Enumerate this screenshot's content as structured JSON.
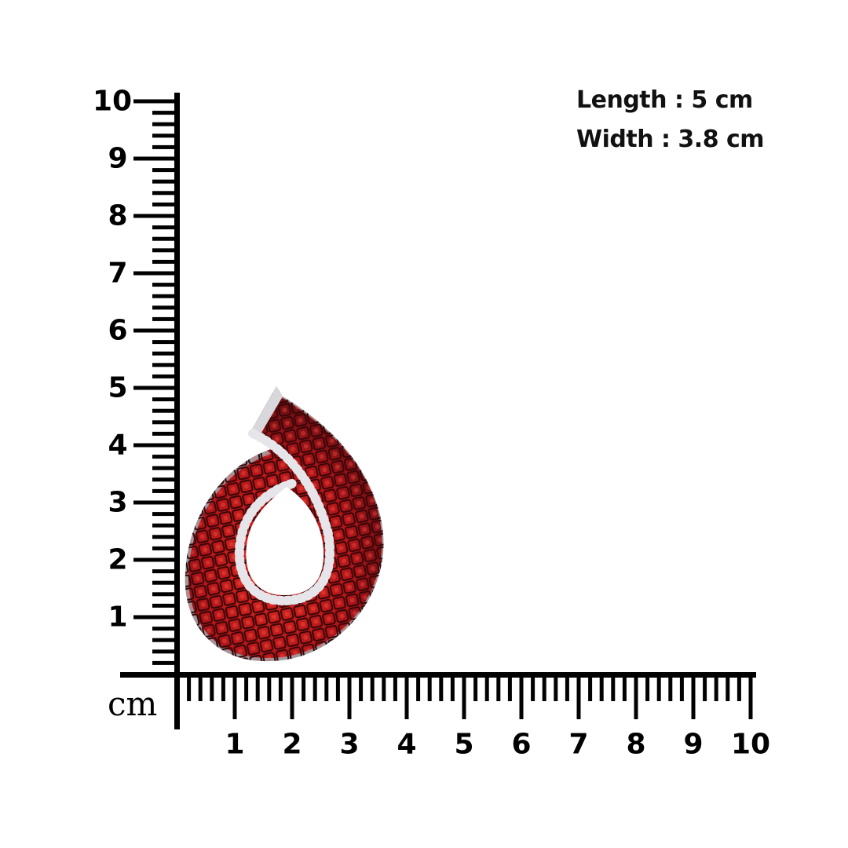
{
  "dimensions": {
    "length": "Length : 5 cm",
    "width": "Width : 3.8 cm"
  },
  "ruler": {
    "unit": "cm",
    "vertical_labels": [
      "1",
      "2",
      "3",
      "4",
      "5",
      "6",
      "7",
      "8",
      "9",
      "10"
    ],
    "horizontal_labels": [
      "1",
      "2",
      "3",
      "4",
      "5",
      "6",
      "7",
      "8",
      "9",
      "10"
    ],
    "ticks_per_cm": 5,
    "color": "#000000"
  },
  "product": {
    "type": "teardrop pendant",
    "stone_color": "#b01818",
    "accent_color": "#e0e0e0"
  }
}
